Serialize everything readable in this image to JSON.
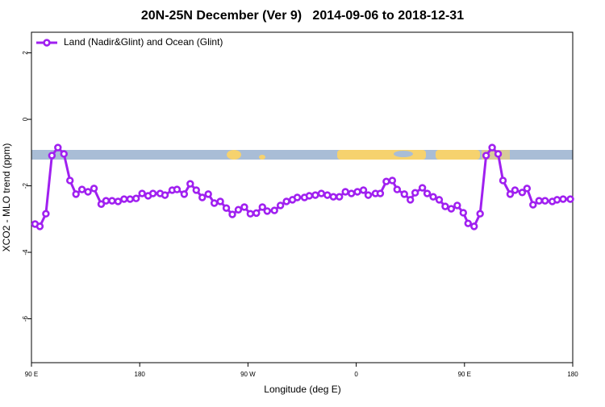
{
  "chart_data": {
    "type": "line",
    "title": "20N-25N December (Ver 9)   2014-09-06 to 2018-12-31",
    "xlabel": "Longitude (deg E)",
    "ylabel": "XCO2 - MLO trend (ppm)",
    "xlim": [
      90,
      540
    ],
    "ylim": [
      -7.32,
      2.62
    ],
    "xticks": [
      {
        "value": 90,
        "label": "90 E"
      },
      180,
      {
        "value": 270,
        "label": "90 W"
      },
      {
        "value": 360,
        "label": "0"
      },
      {
        "value": 450,
        "label": "90 E"
      },
      {
        "value": 540,
        "label": "180"
      }
    ],
    "yticks": [
      2,
      0,
      -2,
      -4,
      -6
    ],
    "legend": "top-left",
    "series": [
      {
        "name": "Land (Nadir&Glint) and Ocean (Glint)",
        "color": "#a020f0",
        "x": [
          93,
          97,
          102,
          107,
          112,
          117,
          122,
          127,
          132,
          137,
          142,
          148,
          152,
          157,
          162,
          167,
          172,
          177,
          182,
          187,
          191,
          197,
          201,
          207,
          211,
          217,
          222,
          227,
          232,
          237,
          242,
          247,
          252,
          257,
          262,
          267,
          272,
          277,
          282,
          286,
          292,
          297,
          302,
          307,
          311,
          317,
          321,
          326,
          331,
          336,
          341,
          346,
          351,
          356,
          361,
          366,
          370,
          376,
          380,
          385,
          390,
          394,
          400,
          405,
          409,
          415,
          419,
          424,
          429,
          434,
          439,
          444,
          449,
          453,
          458,
          463,
          468,
          473,
          478,
          482,
          488,
          492,
          498,
          502,
          507,
          512,
          517,
          523,
          527,
          532,
          538
        ],
        "values": [
          -3.15,
          -3.22,
          -2.84,
          -1.09,
          -0.85,
          -1.04,
          -1.84,
          -2.25,
          -2.11,
          -2.18,
          -2.08,
          -2.55,
          -2.45,
          -2.45,
          -2.47,
          -2.4,
          -2.4,
          -2.38,
          -2.23,
          -2.3,
          -2.23,
          -2.23,
          -2.28,
          -2.13,
          -2.11,
          -2.25,
          -1.94,
          -2.13,
          -2.35,
          -2.25,
          -2.52,
          -2.47,
          -2.67,
          -2.86,
          -2.72,
          -2.64,
          -2.84,
          -2.82,
          -2.64,
          -2.76,
          -2.74,
          -2.59,
          -2.47,
          -2.42,
          -2.35,
          -2.35,
          -2.3,
          -2.28,
          -2.23,
          -2.28,
          -2.33,
          -2.33,
          -2.18,
          -2.23,
          -2.18,
          -2.13,
          -2.28,
          -2.23,
          -2.23,
          -1.87,
          -1.84,
          -2.11,
          -2.25,
          -2.42,
          -2.21,
          -2.06,
          -2.23,
          -2.33,
          -2.42,
          -2.62,
          -2.69,
          -2.59,
          -2.81,
          -3.13,
          -3.22,
          -2.84,
          -1.09,
          -0.85,
          -1.04,
          -1.84,
          -2.25,
          -2.13,
          -2.2,
          -2.08,
          -2.57,
          -2.45,
          -2.45,
          -2.47,
          -2.42,
          -2.4,
          -2.4
        ]
      }
    ]
  }
}
